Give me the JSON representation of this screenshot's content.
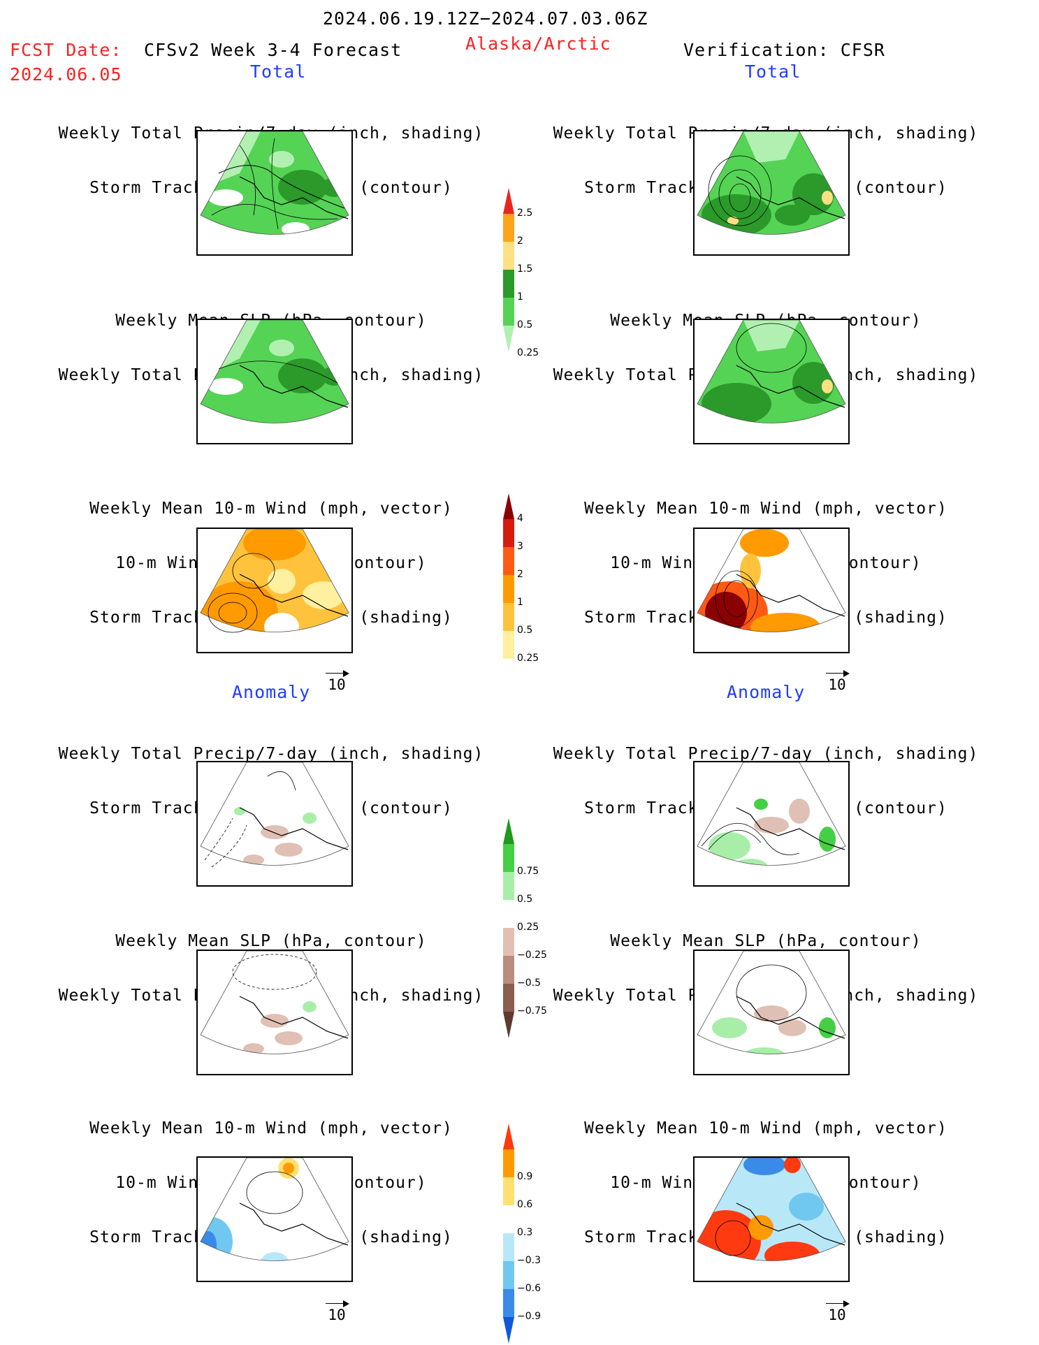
{
  "header": {
    "period": "2024.06.19.12Z−2024.07.03.06Z",
    "fcst_label": "FCST Date:",
    "fcst_date": "2024.06.05",
    "model_title": "CFSv2 Week 3-4 Forecast",
    "region": "Alaska/Arctic",
    "verification": "Verification: CFSR"
  },
  "sections": {
    "total": "Total",
    "anomaly": "Anomaly"
  },
  "titles": {
    "precip_storm": [
      "Weekly Total Precip/7-day (inch, shading)",
      "Storm Track Density/7-day (contour)"
    ],
    "slp_precip": [
      "Weekly Mean SLP (hPa, contour)",
      "Weekly Total Precip/7-day (inch, shading)"
    ],
    "wind_storm": [
      "Weekly Mean 10-m Wind (mph, vector)",
      "10-m Wind Speed (mph, contour)",
      "Storm Track Density/7-day (shading)"
    ]
  },
  "vector_ref": "10",
  "colorbars": {
    "precip_total": {
      "labels": [
        "2.5",
        "2",
        "1.5",
        "1",
        "0.5",
        "0.25"
      ],
      "colors": [
        "#e8261e",
        "#ffa31a",
        "#ffe082",
        "#2b9a2b",
        "#55d355",
        "#b2f0b2"
      ]
    },
    "storm_total": {
      "labels": [
        "4",
        "3",
        "2",
        "1",
        "0.5",
        "0.25"
      ],
      "colors": [
        "#8b0000",
        "#d81a10",
        "#ff5a14",
        "#ff9a00",
        "#ffc23d",
        "#fff0a0",
        "#ffffff"
      ]
    },
    "precip_anom": {
      "labels": [
        "0.75",
        "0.5",
        "0.25",
        "−0.25",
        "−0.5",
        "−0.75"
      ],
      "colors": [
        "#1f9a1f",
        "#45cf45",
        "#a8eea8",
        "#ffffff",
        "#e0c0b4",
        "#b88c7e",
        "#8c5e50",
        "#5e3a30"
      ]
    },
    "storm_anom": {
      "labels": [
        "0.9",
        "0.6",
        "0.3",
        "−0.3",
        "−0.6",
        "−0.9"
      ],
      "colors": [
        "#ff3a10",
        "#ff9a00",
        "#ffe070",
        "#ffffff",
        "#b8e8f8",
        "#70c8f0",
        "#3a8ae8",
        "#1058d8"
      ]
    }
  }
}
